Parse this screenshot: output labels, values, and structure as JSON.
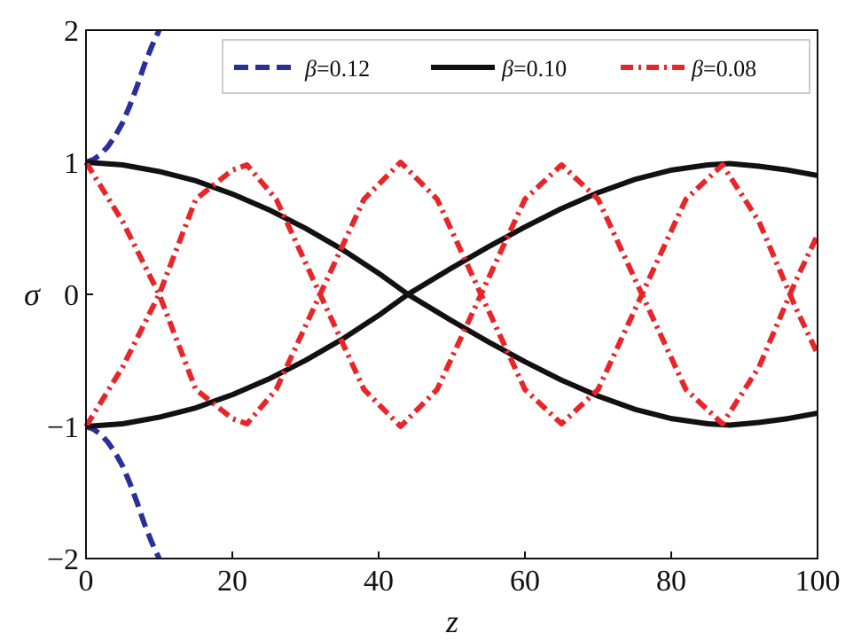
{
  "chart_data": {
    "type": "line",
    "xlabel": "z",
    "ylabel": "σ",
    "xlim": [
      0,
      100
    ],
    "ylim": [
      -2,
      2
    ],
    "xticks": [
      0,
      20,
      40,
      60,
      80,
      100
    ],
    "xtick_labels": [
      "0",
      "20",
      "40",
      "60",
      "80",
      "100"
    ],
    "yticks": [
      2,
      1,
      0,
      -1,
      -2
    ],
    "ytick_labels": [
      "2",
      "1",
      "0",
      "−1",
      "−2"
    ],
    "legend_position": "top-right",
    "grid": false,
    "series": [
      {
        "name": "β=0.12",
        "legend_symbol": "β",
        "legend_value": "=0.12",
        "color": "#2b2f9a",
        "style": "dashed",
        "branches": [
          {
            "x": [
              0,
              1,
              2,
              3,
              4,
              5,
              6,
              7,
              8,
              9,
              10
            ],
            "y": [
              1.0,
              1.02,
              1.06,
              1.12,
              1.2,
              1.3,
              1.43,
              1.58,
              1.74,
              1.88,
              2.0
            ]
          },
          {
            "x": [
              0,
              1,
              2,
              3,
              4,
              5,
              6,
              7,
              8,
              9,
              10
            ],
            "y": [
              -1.0,
              -1.02,
              -1.06,
              -1.12,
              -1.2,
              -1.3,
              -1.43,
              -1.58,
              -1.74,
              -1.88,
              -2.0
            ]
          }
        ]
      },
      {
        "name": "β=0.10",
        "legend_symbol": "β",
        "legend_value": "=0.10",
        "color": "#111111",
        "style": "solid",
        "branches": [
          {
            "x": [
              0,
              5,
              10,
              15,
              20,
              25,
              30,
              35,
              40,
              44,
              50,
              55,
              60,
              65,
              70,
              75,
              80,
              85,
              88,
              92,
              96,
              100
            ],
            "y": [
              1.0,
              0.98,
              0.93,
              0.86,
              0.76,
              0.64,
              0.5,
              0.34,
              0.16,
              0.0,
              -0.2,
              -0.36,
              -0.51,
              -0.65,
              -0.77,
              -0.87,
              -0.94,
              -0.98,
              -0.99,
              -0.97,
              -0.94,
              -0.9
            ]
          },
          {
            "x": [
              0,
              5,
              10,
              15,
              20,
              25,
              30,
              35,
              40,
              44,
              50,
              55,
              60,
              65,
              70,
              75,
              80,
              85,
              88,
              92,
              96,
              100
            ],
            "y": [
              -1.0,
              -0.98,
              -0.93,
              -0.86,
              -0.76,
              -0.64,
              -0.5,
              -0.34,
              -0.16,
              0.0,
              0.2,
              0.36,
              0.51,
              0.65,
              0.77,
              0.87,
              0.94,
              0.98,
              0.99,
              0.97,
              0.94,
              0.9
            ]
          }
        ]
      },
      {
        "name": "β=0.08",
        "legend_symbol": "β",
        "legend_value": "=0.08",
        "color": "#e8262a",
        "style": "dashdot",
        "branches": [
          {
            "x": [
              0,
              5,
              10,
              15,
              20,
              22,
              26,
              32,
              38,
              43,
              48,
              54,
              60,
              65,
              70,
              76,
              82,
              87,
              92,
              97,
              100
            ],
            "y": [
              1.0,
              0.55,
              0.0,
              -0.72,
              -0.94,
              -0.98,
              -0.72,
              0.0,
              0.72,
              1.0,
              0.72,
              0.0,
              -0.72,
              -0.98,
              -0.72,
              0.0,
              0.72,
              0.98,
              0.55,
              -0.1,
              -0.45
            ]
          },
          {
            "x": [
              0,
              5,
              10,
              15,
              20,
              22,
              26,
              32,
              38,
              43,
              48,
              54,
              60,
              65,
              70,
              76,
              82,
              87,
              92,
              97,
              100
            ],
            "y": [
              -1.0,
              -0.55,
              0.0,
              0.72,
              0.94,
              0.98,
              0.72,
              0.0,
              -0.72,
              -1.0,
              -0.72,
              0.0,
              0.72,
              0.98,
              0.72,
              0.0,
              -0.72,
              -0.98,
              -0.55,
              0.1,
              0.45
            ]
          }
        ]
      }
    ]
  }
}
